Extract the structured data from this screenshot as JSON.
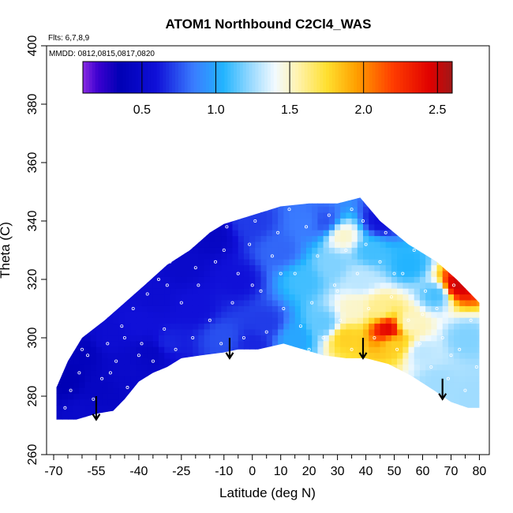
{
  "chart_data": {
    "type": "heatmap",
    "title": "ATOM1 Northbound C2Cl4_WAS",
    "annotations": {
      "flights": "Flts: 6,7,8,9",
      "dates": "MMDD: 0812,0815,0817,0820"
    },
    "xlabel": "Latitude (deg N)",
    "ylabel": "Theta (C)",
    "xlim": [
      -70,
      80
    ],
    "ylim": [
      260,
      400
    ],
    "x_ticks": [
      "-70",
      "-55",
      "-40",
      "-25",
      "-10",
      "0",
      "10",
      "20",
      "30",
      "40",
      "50",
      "60",
      "70",
      "80"
    ],
    "x_tick_values": [
      -70,
      -55,
      -40,
      -25,
      -10,
      0,
      10,
      20,
      30,
      40,
      50,
      60,
      70,
      80
    ],
    "x_minor_ticks": [
      -65,
      -60,
      -50,
      -45,
      -35,
      -30,
      -20,
      -15,
      -5,
      5,
      15,
      25,
      35,
      45,
      55,
      65,
      75
    ],
    "y_ticks": [
      "260",
      "280",
      "300",
      "320",
      "340",
      "360",
      "380",
      "400"
    ],
    "y_tick_values": [
      260,
      280,
      300,
      320,
      340,
      360,
      380,
      400
    ],
    "grid": false,
    "colorbar": {
      "range": [
        0.1,
        2.6
      ],
      "ticks": [
        "0.5",
        "1.0",
        "1.5",
        "2.0",
        "2.5"
      ],
      "tick_values": [
        0.5,
        1.0,
        1.5,
        2.0,
        2.5
      ],
      "placement": "top"
    },
    "colorscale": [
      {
        "v": 0.1,
        "color": "#8a2be2"
      },
      {
        "v": 0.2,
        "color": "#3d00d0"
      },
      {
        "v": 0.35,
        "color": "#0000b5"
      },
      {
        "v": 0.6,
        "color": "#1010d8"
      },
      {
        "v": 0.85,
        "color": "#3a7cff"
      },
      {
        "v": 1.05,
        "color": "#22b4ff"
      },
      {
        "v": 1.25,
        "color": "#a0dcff"
      },
      {
        "v": 1.4,
        "color": "#f2faff"
      },
      {
        "v": 1.55,
        "color": "#fff3b0"
      },
      {
        "v": 1.75,
        "color": "#ffe030"
      },
      {
        "v": 1.95,
        "color": "#ffa000"
      },
      {
        "v": 2.2,
        "color": "#ff3c00"
      },
      {
        "v": 2.45,
        "color": "#e00000"
      },
      {
        "v": 2.6,
        "color": "#a01818"
      }
    ],
    "data_region_lower_boundary": [
      [
        -69,
        272
      ],
      [
        -62,
        272
      ],
      [
        -55,
        274
      ],
      [
        -49,
        275
      ],
      [
        -45,
        279
      ],
      [
        -40,
        285
      ],
      [
        -35,
        288
      ],
      [
        -30,
        290
      ],
      [
        -25,
        293
      ],
      [
        -18,
        294
      ],
      [
        -10,
        295
      ],
      [
        -5,
        296
      ],
      [
        2,
        296
      ],
      [
        11,
        298
      ],
      [
        18,
        296
      ],
      [
        25,
        294
      ],
      [
        33,
        293
      ],
      [
        40,
        293
      ],
      [
        48,
        291
      ],
      [
        56,
        287
      ],
      [
        64,
        282
      ],
      [
        70,
        278
      ],
      [
        76,
        276
      ],
      [
        80,
        276
      ]
    ],
    "data_region_upper_boundary": [
      [
        -69,
        283
      ],
      [
        -65,
        292
      ],
      [
        -60,
        300
      ],
      [
        -52,
        306
      ],
      [
        -45,
        312
      ],
      [
        -38,
        318
      ],
      [
        -30,
        325
      ],
      [
        -22,
        330
      ],
      [
        -15,
        336
      ],
      [
        -10,
        339
      ],
      [
        0,
        342
      ],
      [
        10,
        345
      ],
      [
        20,
        346
      ],
      [
        30,
        346
      ],
      [
        38,
        348
      ],
      [
        45,
        340
      ],
      [
        55,
        332
      ],
      [
        65,
        326
      ],
      [
        72,
        320
      ],
      [
        80,
        312
      ]
    ],
    "field_points": [
      {
        "lat": -65,
        "theta": 285,
        "value": 0.35
      },
      {
        "lat": -60,
        "theta": 295,
        "value": 0.4
      },
      {
        "lat": -55,
        "theta": 282,
        "value": 0.45
      },
      {
        "lat": -50,
        "theta": 300,
        "value": 0.55
      },
      {
        "lat": -45,
        "theta": 290,
        "value": 0.5
      },
      {
        "lat": -40,
        "theta": 305,
        "value": 0.6
      },
      {
        "lat": -35,
        "theta": 315,
        "value": 0.55
      },
      {
        "lat": -30,
        "theta": 298,
        "value": 0.65
      },
      {
        "lat": -25,
        "theta": 325,
        "value": 0.5
      },
      {
        "lat": -20,
        "theta": 310,
        "value": 0.6
      },
      {
        "lat": -15,
        "theta": 335,
        "value": 0.45
      },
      {
        "lat": -10,
        "theta": 300,
        "value": 0.75
      },
      {
        "lat": -5,
        "theta": 320,
        "value": 0.6
      },
      {
        "lat": 0,
        "theta": 340,
        "value": 0.7
      },
      {
        "lat": 5,
        "theta": 305,
        "value": 0.7
      },
      {
        "lat": 10,
        "theta": 330,
        "value": 0.8
      },
      {
        "lat": 15,
        "theta": 300,
        "value": 1.0
      },
      {
        "lat": 18,
        "theta": 320,
        "value": 1.1
      },
      {
        "lat": 20,
        "theta": 340,
        "value": 0.85
      },
      {
        "lat": 25,
        "theta": 305,
        "value": 1.15
      },
      {
        "lat": 28,
        "theta": 325,
        "value": 1.2
      },
      {
        "lat": 32,
        "theta": 335,
        "value": 1.5
      },
      {
        "lat": 33,
        "theta": 300,
        "value": 1.8
      },
      {
        "lat": 36,
        "theta": 310,
        "value": 1.5
      },
      {
        "lat": 38,
        "theta": 320,
        "value": 1.3
      },
      {
        "lat": 42,
        "theta": 330,
        "value": 1.1
      },
      {
        "lat": 45,
        "theta": 310,
        "value": 1.6
      },
      {
        "lat": 48,
        "theta": 303,
        "value": 2.45
      },
      {
        "lat": 50,
        "theta": 298,
        "value": 1.8
      },
      {
        "lat": 55,
        "theta": 305,
        "value": 1.5
      },
      {
        "lat": 55,
        "theta": 325,
        "value": 1.05
      },
      {
        "lat": 60,
        "theta": 295,
        "value": 1.3
      },
      {
        "lat": 65,
        "theta": 285,
        "value": 1.25
      },
      {
        "lat": 65,
        "theta": 315,
        "value": 1.1
      },
      {
        "lat": 72,
        "theta": 318,
        "value": 2.5
      },
      {
        "lat": 75,
        "theta": 300,
        "value": 1.2
      },
      {
        "lat": 78,
        "theta": 280,
        "value": 1.25
      },
      {
        "lat": 45,
        "theta": 340,
        "value": 0.6
      },
      {
        "lat": -60,
        "theta": 275,
        "value": 0.5
      },
      {
        "lat": 0,
        "theta": 298,
        "value": 0.65
      },
      {
        "lat": -35,
        "theta": 295,
        "value": 0.45
      },
      {
        "lat": 25,
        "theta": 340,
        "value": 0.75
      }
    ],
    "sample_points": [
      [
        -66,
        276
      ],
      [
        -64,
        282
      ],
      [
        -61,
        288
      ],
      [
        -58,
        294
      ],
      [
        -56,
        279
      ],
      [
        -53,
        286
      ],
      [
        -51,
        298
      ],
      [
        -48,
        292
      ],
      [
        -46,
        304
      ],
      [
        -44,
        283
      ],
      [
        -42,
        310
      ],
      [
        -39,
        298
      ],
      [
        -37,
        315
      ],
      [
        -35,
        292
      ],
      [
        -33,
        320
      ],
      [
        -31,
        303
      ],
      [
        -29,
        326
      ],
      [
        -27,
        296
      ],
      [
        -25,
        312
      ],
      [
        -23,
        330
      ],
      [
        -21,
        300
      ],
      [
        -19,
        318
      ],
      [
        -17,
        335
      ],
      [
        -15,
        306
      ],
      [
        -13,
        326
      ],
      [
        -11,
        298
      ],
      [
        -9,
        338
      ],
      [
        -7,
        312
      ],
      [
        -5,
        322
      ],
      [
        -3,
        300
      ],
      [
        -1,
        332
      ],
      [
        1,
        340
      ],
      [
        3,
        316
      ],
      [
        5,
        302
      ],
      [
        7,
        328
      ],
      [
        9,
        336
      ],
      [
        11,
        310
      ],
      [
        13,
        344
      ],
      [
        15,
        322
      ],
      [
        17,
        304
      ],
      [
        19,
        338
      ],
      [
        21,
        312
      ],
      [
        23,
        328
      ],
      [
        25,
        300
      ],
      [
        27,
        342
      ],
      [
        29,
        318
      ],
      [
        31,
        306
      ],
      [
        33,
        330
      ],
      [
        35,
        296
      ],
      [
        37,
        322
      ],
      [
        39,
        340
      ],
      [
        41,
        310
      ],
      [
        43,
        300
      ],
      [
        45,
        326
      ],
      [
        47,
        336
      ],
      [
        49,
        314
      ],
      [
        51,
        296
      ],
      [
        53,
        322
      ],
      [
        55,
        306
      ],
      [
        57,
        330
      ],
      [
        59,
        298
      ],
      [
        61,
        316
      ],
      [
        63,
        290
      ],
      [
        65,
        310
      ],
      [
        67,
        300
      ],
      [
        69,
        286
      ],
      [
        71,
        318
      ],
      [
        73,
        296
      ],
      [
        75,
        282
      ],
      [
        77,
        306
      ],
      [
        79,
        290
      ],
      [
        -60,
        296
      ],
      [
        -50,
        288
      ],
      [
        -40,
        294
      ],
      [
        -30,
        318
      ],
      [
        -20,
        324
      ],
      [
        -10,
        330
      ],
      [
        0,
        318
      ],
      [
        10,
        322
      ],
      [
        20,
        296
      ],
      [
        30,
        316
      ],
      [
        40,
        332
      ],
      [
        50,
        322
      ],
      [
        60,
        308
      ],
      [
        70,
        294
      ],
      [
        -45,
        300
      ],
      [
        5,
        344
      ],
      [
        35,
        344
      ]
    ],
    "arrows_lat": [
      -55,
      -8,
      39,
      67
    ],
    "arrows_theta_top": [
      280,
      300,
      300,
      286
    ],
    "arrows_theta_bottom": [
      272,
      293,
      293,
      279
    ]
  }
}
